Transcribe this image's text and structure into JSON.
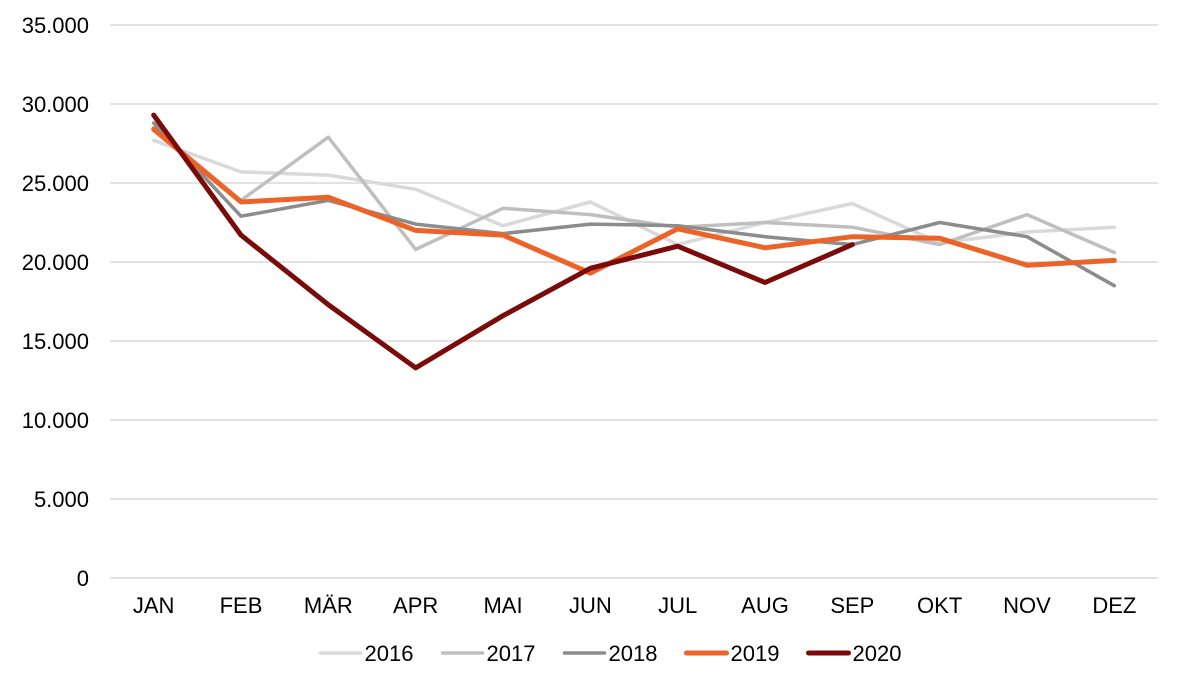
{
  "chart_data": {
    "type": "line",
    "title": "",
    "xlabel": "",
    "ylabel": "",
    "categories": [
      "JAN",
      "FEB",
      "MÄR",
      "APR",
      "MAI",
      "JUN",
      "JUL",
      "AUG",
      "SEP",
      "OKT",
      "NOV",
      "DEZ"
    ],
    "ylim": [
      0,
      35000
    ],
    "yticks": [
      0,
      5000,
      10000,
      15000,
      20000,
      25000,
      30000,
      35000
    ],
    "ytick_labels": [
      "0",
      "5.000",
      "10.000",
      "15.000",
      "20.000",
      "25.000",
      "30.000",
      "35.000"
    ],
    "grid": "horizontal",
    "legend_position": "bottom",
    "series": [
      {
        "name": "2016",
        "color": "#d9d9d9",
        "values": [
          27700,
          25700,
          25500,
          24600,
          22300,
          23800,
          21100,
          22500,
          23700,
          21200,
          21900,
          22200
        ]
      },
      {
        "name": "2017",
        "color": "#bfbfbf",
        "values": [
          28500,
          23900,
          27900,
          20800,
          23400,
          23000,
          22200,
          22500,
          22200,
          21100,
          23000,
          20600
        ]
      },
      {
        "name": "2018",
        "color": "#8c8c8c",
        "values": [
          28800,
          22900,
          23900,
          22400,
          21800,
          22400,
          22300,
          21600,
          21100,
          22500,
          21600,
          18500
        ]
      },
      {
        "name": "2019",
        "color": "#ed6227",
        "values": [
          28400,
          23800,
          24100,
          22000,
          21700,
          19300,
          22100,
          20900,
          21600,
          21500,
          19800,
          20100
        ]
      },
      {
        "name": "2020",
        "color": "#7b0a0a",
        "values": [
          29300,
          21700,
          17300,
          13300,
          16600,
          19600,
          21000,
          18700,
          21100,
          null,
          null,
          null
        ]
      }
    ]
  }
}
